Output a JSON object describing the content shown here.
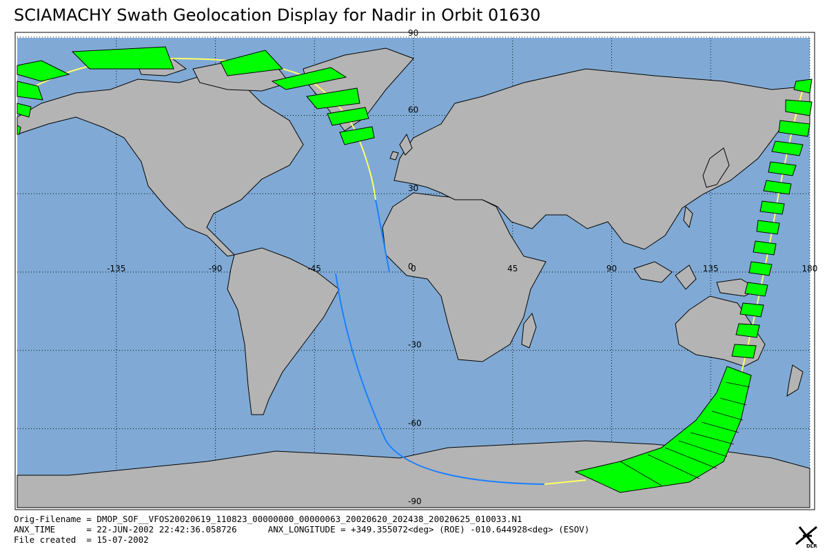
{
  "title": "SCIAMACHY Swath Geolocation Display for Nadir in Orbit 01630",
  "map": {
    "lat_labels": [
      90,
      60,
      30,
      0,
      -30,
      -60,
      -90
    ],
    "lon_labels": [
      -135,
      -90,
      -45,
      0,
      45,
      90,
      135,
      180
    ]
  },
  "footer": {
    "lines": [
      "Orig-Filename = DMOP_SOF__VFOS20020619_110823_00000000_00000063_20020620_202438_20020625_010033.N1",
      "ANX_TIME      = 22-JUN-2002 22:42:36.058726      ANX_LONGITUDE = +349.355072<deg> (ROE) -010.644928<deg> (ESOV)",
      "File created  = 15-07-2002"
    ]
  },
  "logo": "DLR"
}
